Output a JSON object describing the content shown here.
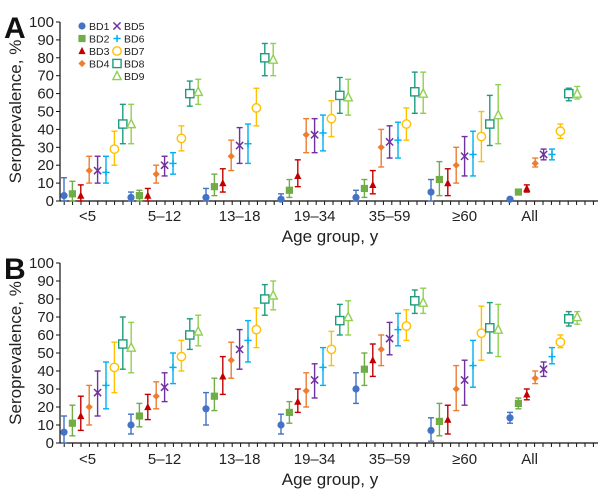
{
  "chart_data": [
    {
      "type": "scatter",
      "panel": "A",
      "title": "",
      "xlabel": "Age group, y",
      "ylabel": "Seroprevalence, %",
      "ylim": [
        0,
        100
      ],
      "yticks": [
        0,
        10,
        20,
        30,
        40,
        50,
        60,
        70,
        80,
        90,
        100
      ],
      "categories": [
        "<5",
        "5–12",
        "13–18",
        "19–34",
        "35–59",
        "≥60",
        "All"
      ],
      "legend_position": "top-left",
      "series": [
        {
          "name": "BD1",
          "color": "#4472C4",
          "marker": "circle",
          "values": [
            3,
            2,
            2,
            1,
            2,
            5,
            1
          ],
          "lower": [
            0,
            0,
            0,
            0,
            0,
            0,
            0
          ],
          "upper": [
            13,
            5,
            7,
            4,
            6,
            12,
            1
          ]
        },
        {
          "name": "BD2",
          "color": "#70AD47",
          "marker": "square",
          "values": [
            4,
            3,
            8,
            6,
            7,
            12,
            5
          ],
          "lower": [
            0,
            0,
            3,
            2,
            2,
            3,
            4
          ],
          "upper": [
            11,
            6,
            15,
            12,
            12,
            22,
            6
          ]
        },
        {
          "name": "BD3",
          "color": "#C00000",
          "marker": "triangle",
          "values": [
            3,
            3,
            10,
            14,
            9,
            10,
            7
          ],
          "lower": [
            0,
            0,
            5,
            8,
            4,
            3,
            5
          ],
          "upper": [
            9,
            7,
            18,
            23,
            17,
            18,
            9
          ]
        },
        {
          "name": "BD4",
          "color": "#ED7D31",
          "marker": "diamond",
          "values": [
            17,
            15,
            25,
            37,
            30,
            20,
            21
          ],
          "lower": [
            10,
            10,
            17,
            27,
            19,
            10,
            19
          ],
          "upper": [
            25,
            20,
            34,
            46,
            40,
            30,
            24
          ]
        },
        {
          "name": "BD5",
          "color": "#7030A0",
          "marker": "x",
          "values": [
            17,
            20,
            31,
            37,
            33,
            25,
            26
          ],
          "lower": [
            10,
            14,
            21,
            27,
            24,
            14,
            23
          ],
          "upper": [
            25,
            25,
            41,
            46,
            42,
            36,
            29
          ]
        },
        {
          "name": "BD6",
          "color": "#00B0F0",
          "marker": "plus",
          "values": [
            16,
            21,
            32,
            38,
            34,
            26,
            26
          ],
          "lower": [
            10,
            15,
            21,
            28,
            24,
            14,
            23
          ],
          "upper": [
            25,
            27,
            43,
            48,
            44,
            39,
            29
          ]
        },
        {
          "name": "BD7",
          "color": "#FFC000",
          "marker": "open-circle",
          "values": [
            29,
            35,
            52,
            46,
            43,
            36,
            39
          ],
          "lower": [
            20,
            28,
            42,
            36,
            34,
            22,
            35
          ],
          "upper": [
            39,
            42,
            63,
            56,
            52,
            50,
            43
          ]
        },
        {
          "name": "BD8",
          "color": "#1E9C7F",
          "marker": "open-square",
          "values": [
            43,
            60,
            80,
            59,
            61,
            43,
            60
          ],
          "lower": [
            32,
            53,
            70,
            49,
            49,
            31,
            56
          ],
          "upper": [
            54,
            67,
            88,
            69,
            72,
            59,
            63
          ]
        },
        {
          "name": "BD9",
          "color": "#92D050",
          "marker": "open-triangle",
          "values": [
            43,
            61,
            79,
            58,
            60,
            48,
            60
          ],
          "lower": [
            32,
            54,
            70,
            48,
            49,
            32,
            57
          ],
          "upper": [
            54,
            68,
            88,
            68,
            72,
            65,
            64
          ]
        }
      ]
    },
    {
      "type": "scatter",
      "panel": "B",
      "title": "",
      "xlabel": "Age group, y",
      "ylabel": "Seroprevalence, %",
      "ylim": [
        0,
        100
      ],
      "yticks": [
        0,
        10,
        20,
        30,
        40,
        50,
        60,
        70,
        80,
        90,
        100
      ],
      "categories": [
        "<5",
        "5–12",
        "13–18",
        "19–34",
        "35–59",
        "≥60",
        "All"
      ],
      "series": [
        {
          "name": "BD1",
          "color": "#4472C4",
          "marker": "circle",
          "values": [
            6,
            10,
            19,
            10,
            30,
            7,
            14
          ],
          "lower": [
            0,
            5,
            10,
            5,
            22,
            1,
            11
          ],
          "upper": [
            15,
            16,
            28,
            16,
            39,
            14,
            17
          ]
        },
        {
          "name": "BD2",
          "color": "#70AD47",
          "marker": "square",
          "values": [
            11,
            15,
            26,
            17,
            41,
            12,
            22
          ],
          "lower": [
            4,
            9,
            18,
            11,
            32,
            4,
            19
          ],
          "upper": [
            21,
            22,
            36,
            23,
            50,
            22,
            25
          ]
        },
        {
          "name": "BD3",
          "color": "#C00000",
          "marker": "triangle",
          "values": [
            15,
            20,
            37,
            23,
            46,
            13,
            27
          ],
          "lower": [
            7,
            13,
            27,
            17,
            37,
            5,
            24
          ],
          "upper": [
            26,
            27,
            48,
            30,
            55,
            21,
            30
          ]
        },
        {
          "name": "BD4",
          "color": "#ED7D31",
          "marker": "diamond",
          "values": [
            20,
            26,
            46,
            29,
            52,
            30,
            36
          ],
          "lower": [
            10,
            19,
            36,
            20,
            43,
            18,
            33
          ],
          "upper": [
            32,
            34,
            56,
            39,
            60,
            43,
            40
          ]
        },
        {
          "name": "BD5",
          "color": "#7030A0",
          "marker": "x",
          "values": [
            28,
            31,
            52,
            35,
            58,
            35,
            41
          ],
          "lower": [
            15,
            23,
            41,
            25,
            49,
            21,
            37
          ],
          "upper": [
            40,
            39,
            63,
            44,
            67,
            46,
            45
          ]
        },
        {
          "name": "BD6",
          "color": "#00B0F0",
          "marker": "plus",
          "values": [
            32,
            42,
            57,
            42,
            63,
            43,
            48
          ],
          "lower": [
            19,
            33,
            45,
            32,
            54,
            31,
            44
          ],
          "upper": [
            45,
            50,
            68,
            53,
            72,
            57,
            53
          ]
        },
        {
          "name": "BD7",
          "color": "#FFC000",
          "marker": "open-circle",
          "values": [
            42,
            48,
            63,
            52,
            65,
            61,
            56
          ],
          "lower": [
            28,
            40,
            53,
            43,
            57,
            46,
            53
          ],
          "upper": [
            56,
            57,
            75,
            62,
            74,
            76,
            60
          ]
        },
        {
          "name": "BD8",
          "color": "#1E9C7F",
          "marker": "open-square",
          "values": [
            55,
            60,
            80,
            68,
            79,
            64,
            69
          ],
          "lower": [
            41,
            52,
            71,
            60,
            72,
            50,
            65
          ],
          "upper": [
            70,
            69,
            88,
            77,
            85,
            78,
            73
          ]
        },
        {
          "name": "BD9",
          "color": "#92D050",
          "marker": "open-triangle",
          "values": [
            53,
            62,
            82,
            70,
            78,
            63,
            70
          ],
          "lower": [
            39,
            54,
            74,
            60,
            72,
            48,
            66
          ],
          "upper": [
            67,
            71,
            90,
            79,
            86,
            77,
            73
          ]
        }
      ]
    }
  ]
}
